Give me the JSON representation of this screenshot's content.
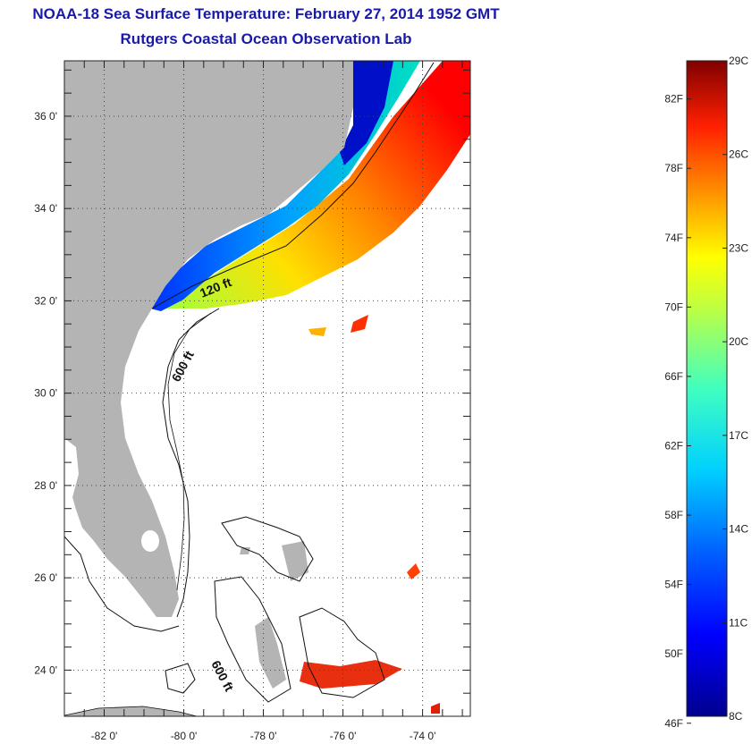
{
  "title": "NOAA-18 Sea Surface Temperature:  February 27, 2014 1952 GMT",
  "subtitle": "Rutgers Coastal Ocean Observation Lab",
  "map": {
    "lat_range": [
      23,
      37.2
    ],
    "lon_range": [
      -83.0,
      -72.8
    ],
    "lat_ticks": [
      "36 0'",
      "34 0'",
      "32 0'",
      "30 0'",
      "28 0'",
      "26 0'",
      "24 0'"
    ],
    "lat_tick_values": [
      36,
      34,
      32,
      30,
      28,
      26,
      24
    ],
    "lon_ticks": [
      "-82 0'",
      "-80 0'",
      "-78 0'",
      "-76 0'",
      "-74 0'"
    ],
    "lon_tick_values": [
      -82,
      -80,
      -78,
      -76,
      -74
    ],
    "contour_labels": [
      "120 ft",
      "600 ft",
      "600 ft"
    ],
    "land_color": "#b4b4b4",
    "grid": true
  },
  "colorbar": {
    "min_c": 8,
    "max_c": 29,
    "celsius_labels": [
      "29C",
      "26C",
      "23C",
      "20C",
      "17C",
      "14C",
      "11C",
      "8C"
    ],
    "celsius_values": [
      29,
      26,
      23,
      20,
      17,
      14,
      11,
      8
    ],
    "fahrenheit_labels": [
      "82F",
      "78F",
      "74F",
      "70F",
      "66F",
      "62F",
      "58F",
      "54F",
      "50F",
      "46F"
    ],
    "fahrenheit_values": [
      82,
      78,
      74,
      70,
      66,
      62,
      58,
      54,
      50,
      46
    ],
    "colors": [
      "#00008f",
      "#0000ff",
      "#0080ff",
      "#00ffff",
      "#80ff80",
      "#ffff00",
      "#ff8000",
      "#ff0000",
      "#800000"
    ]
  }
}
